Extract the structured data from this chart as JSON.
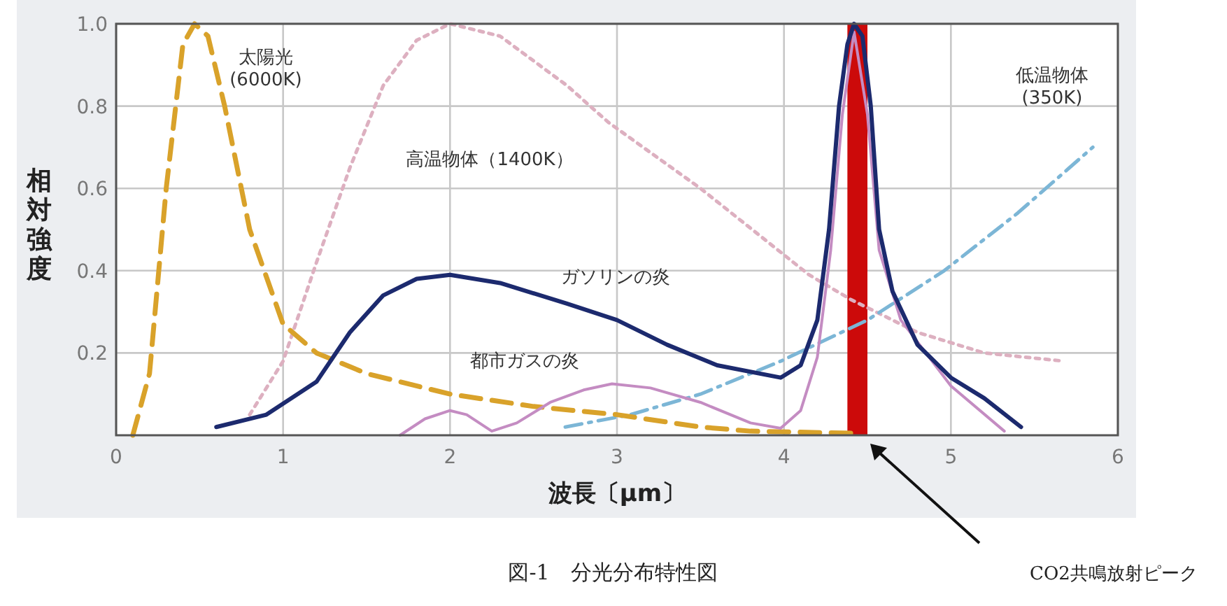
{
  "chart_data": {
    "type": "line",
    "title": "図-1　分光分布特性図",
    "xlabel": "波長〔μm〕",
    "ylabel": "相対強度",
    "xlim": [
      0,
      6
    ],
    "ylim": [
      0,
      1
    ],
    "xticks": [
      0,
      1,
      2,
      3,
      4,
      5,
      6
    ],
    "yticks": [
      {
        "value": 0.2,
        "label": "0.2"
      },
      {
        "value": 0.4,
        "label": "0.4"
      },
      {
        "value": 0.6,
        "label": "0.6"
      },
      {
        "value": 0.8,
        "label": "0.8"
      },
      {
        "value": 1,
        "label": "1.0"
      }
    ],
    "grid": true,
    "marker": "none",
    "bands": [
      {
        "axis": "x",
        "from": 4.38,
        "to": 4.5,
        "color": "#cc0a0a",
        "label": null
      }
    ],
    "annotations": [
      "CO2共鳴放射ピーク"
    ],
    "series": [
      {
        "name": "太陽光 (6000K)",
        "color": "#d9a22a",
        "line_style": "dashed",
        "x": [
          0.1,
          0.2,
          0.3,
          0.4,
          0.47,
          0.55,
          0.65,
          0.8,
          1.0,
          1.2,
          1.5,
          2.0,
          2.5,
          3.0,
          3.5,
          3.8,
          4.4
        ],
        "values": [
          0,
          0.15,
          0.6,
          0.95,
          1.0,
          0.97,
          0.8,
          0.5,
          0.27,
          0.2,
          0.15,
          0.1,
          0.07,
          0.05,
          0.02,
          0.01,
          0.005
        ]
      },
      {
        "name": "高温物体（1400K）",
        "color": "#ddb0c0",
        "line_style": "dotted",
        "x": [
          0.8,
          1.0,
          1.2,
          1.4,
          1.6,
          1.8,
          2.0,
          2.3,
          2.7,
          2.95,
          3.5,
          4.15,
          4.4,
          4.8,
          5.2,
          5.68
        ],
        "values": [
          0.05,
          0.18,
          0.42,
          0.65,
          0.85,
          0.96,
          1.0,
          0.97,
          0.85,
          0.76,
          0.6,
          0.39,
          0.33,
          0.25,
          0.2,
          0.18
        ]
      },
      {
        "name": "ガソリンの炎",
        "color": "#1c2a6e",
        "line_style": "solid",
        "x": [
          0.6,
          0.9,
          1.2,
          1.4,
          1.6,
          1.8,
          2.0,
          2.3,
          2.7,
          3.0,
          3.3,
          3.6,
          3.98,
          4.1,
          4.2,
          4.27,
          4.33,
          4.38,
          4.42,
          4.47,
          4.52,
          4.57,
          4.65,
          4.8,
          5.0,
          5.2,
          5.42
        ],
        "values": [
          0.02,
          0.05,
          0.13,
          0.25,
          0.34,
          0.38,
          0.39,
          0.37,
          0.32,
          0.28,
          0.22,
          0.17,
          0.14,
          0.17,
          0.28,
          0.5,
          0.8,
          0.95,
          1.0,
          0.97,
          0.8,
          0.5,
          0.35,
          0.22,
          0.14,
          0.09,
          0.02
        ]
      },
      {
        "name": "都市ガスの炎",
        "color": "#c48cc2",
        "line_style": "solid",
        "x": [
          1.7,
          1.85,
          2.0,
          2.1,
          2.25,
          2.4,
          2.6,
          2.8,
          2.97,
          3.2,
          3.5,
          3.8,
          3.98,
          4.1,
          4.2,
          4.28,
          4.35,
          4.42,
          4.5,
          4.57,
          4.7,
          5.0,
          5.32
        ],
        "values": [
          0,
          0.04,
          0.06,
          0.05,
          0.01,
          0.03,
          0.08,
          0.11,
          0.125,
          0.115,
          0.08,
          0.03,
          0.017,
          0.06,
          0.19,
          0.45,
          0.78,
          0.98,
          0.78,
          0.45,
          0.28,
          0.12,
          0.01
        ]
      },
      {
        "name": "低温物体 (350K)",
        "color": "#7cb6d6",
        "line_style": "dashdot",
        "x": [
          2.69,
          3.08,
          3.5,
          3.98,
          4.5,
          4.96,
          5.4,
          5.85
        ],
        "values": [
          0.02,
          0.05,
          0.1,
          0.18,
          0.28,
          0.4,
          0.54,
          0.7
        ]
      }
    ]
  }
}
